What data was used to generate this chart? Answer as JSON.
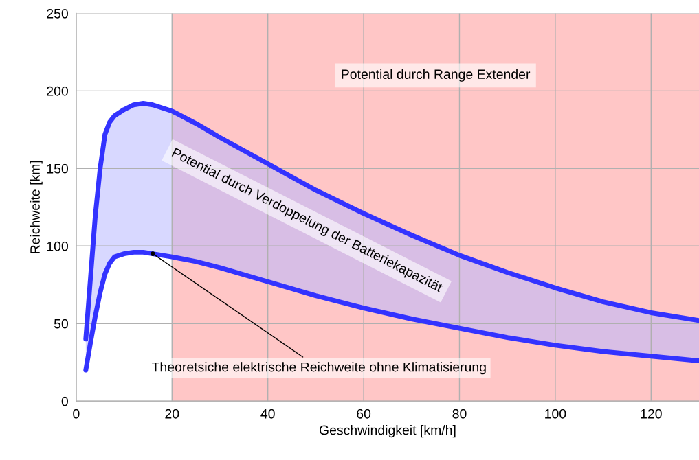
{
  "chart_data": {
    "type": "line",
    "xlabel": "Geschwindigkeit [km/h]",
    "ylabel": "Reichweite [km]",
    "xlim": [
      0,
      130
    ],
    "ylim": [
      0,
      250
    ],
    "xticks": [
      0,
      20,
      40,
      60,
      80,
      100,
      120
    ],
    "yticks": [
      0,
      50,
      100,
      150,
      200,
      250
    ],
    "grid": true,
    "series": [
      {
        "color": "#3333ff",
        "x": [
          2,
          3,
          4,
          5,
          6,
          7,
          8,
          10,
          12,
          14,
          16,
          20,
          25,
          30,
          40,
          50,
          60,
          70,
          80,
          90,
          100,
          110,
          120,
          130
        ],
        "values": [
          40,
          80,
          120,
          150,
          172,
          180,
          184,
          188,
          191,
          192,
          191,
          187,
          179,
          170,
          153,
          136,
          121,
          107,
          94,
          83,
          73,
          64,
          57,
          52
        ],
        "lower": [
          20,
          38,
          55,
          70,
          82,
          89,
          93,
          95,
          96,
          96,
          95,
          93,
          90,
          86,
          77,
          68,
          60,
          53,
          47,
          41,
          36,
          32,
          29,
          26
        ],
        "upper": [
          40,
          80,
          120,
          150,
          172,
          180,
          184,
          188,
          191,
          192,
          191,
          187,
          179,
          170,
          153,
          136,
          121,
          107,
          94,
          83,
          73,
          64,
          57,
          52
        ]
      },
      {
        "color": "#3333ff",
        "x": [
          2,
          3,
          4,
          5,
          6,
          7,
          8,
          10,
          12,
          14,
          16,
          20,
          25,
          30,
          40,
          50,
          60,
          70,
          80,
          90,
          100,
          110,
          120,
          130
        ],
        "values": [
          20,
          38,
          55,
          70,
          82,
          89,
          93,
          95,
          96,
          96,
          95,
          93,
          90,
          86,
          77,
          68,
          60,
          53,
          47,
          41,
          36,
          32,
          29,
          26
        ]
      }
    ],
    "bands": [
      {
        "axis": "x",
        "from": 20,
        "to": 130,
        "label": "Potential durch Range Extender",
        "color": "#ffc6c6"
      }
    ],
    "annotations": [
      "Potential durch Verdoppelung der Batteriekapazität",
      {
        "text": "Theoretsiche elektrische Reichweite ohne Klimatisierung",
        "x": 16,
        "y": 95
      }
    ]
  }
}
